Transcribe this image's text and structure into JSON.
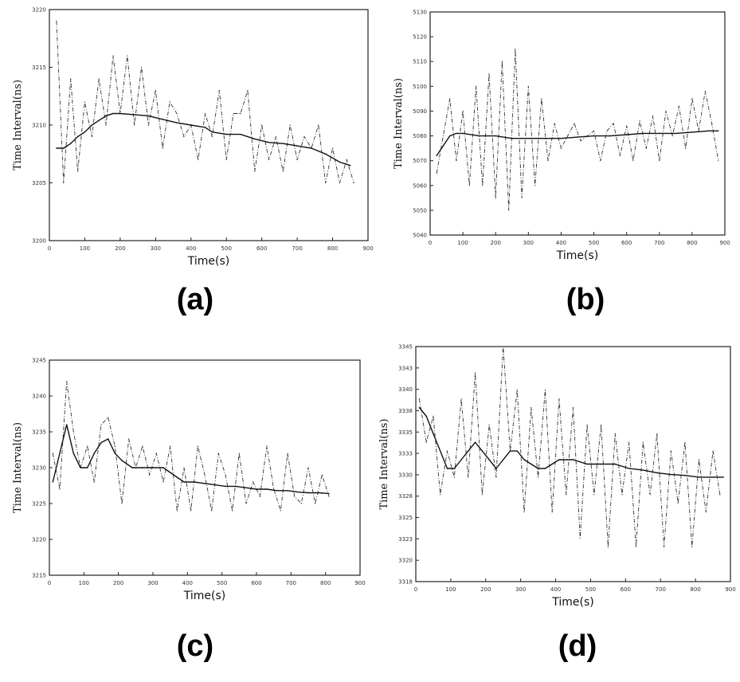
{
  "chart_data": [
    {
      "type": "line",
      "panel_label": "(a)",
      "xlabel": "Time(s)",
      "ylabel": "Time Interval(ns)",
      "xticks": [
        "0",
        "100",
        "200",
        "300",
        "400",
        "500",
        "600",
        "700",
        "800",
        "900"
      ],
      "yticks": [
        "3200",
        "3205",
        "3210",
        "3215",
        "3220"
      ],
      "xlim": [
        0,
        900
      ],
      "ylim": [
        3200,
        3220
      ],
      "series": [
        {
          "style": "dashed-raw",
          "x": [
            20,
            40,
            60,
            80,
            100,
            120,
            140,
            160,
            180,
            200,
            220,
            240,
            260,
            280,
            300,
            320,
            340,
            360,
            380,
            400,
            420,
            440,
            460,
            480,
            500,
            520,
            540,
            560,
            580,
            600,
            620,
            640,
            660,
            680,
            700,
            720,
            740,
            760,
            780,
            800,
            820,
            840,
            860
          ],
          "y": [
            3219,
            3205,
            3214,
            3206,
            3212,
            3209,
            3214,
            3210,
            3216,
            3211,
            3216,
            3210,
            3215,
            3210,
            3213,
            3208,
            3212,
            3211,
            3209,
            3210,
            3207,
            3211,
            3209,
            3213,
            3207,
            3211,
            3211,
            3213,
            3206,
            3210,
            3207,
            3209,
            3206,
            3210,
            3207,
            3209,
            3208,
            3210,
            3205,
            3208,
            3205,
            3207,
            3205
          ]
        },
        {
          "style": "solid-mean",
          "x": [
            20,
            40,
            60,
            80,
            100,
            120,
            140,
            160,
            180,
            200,
            240,
            280,
            320,
            360,
            400,
            440,
            460,
            500,
            540,
            580,
            620,
            660,
            700,
            740,
            780,
            820,
            850
          ],
          "y": [
            3208,
            3208,
            3208.4,
            3209,
            3209.4,
            3210,
            3210.4,
            3210.8,
            3211,
            3211,
            3210.9,
            3210.8,
            3210.5,
            3210.2,
            3210,
            3209.8,
            3209.4,
            3209.2,
            3209.2,
            3208.8,
            3208.5,
            3208.4,
            3208.2,
            3208,
            3207.5,
            3206.8,
            3206.5
          ]
        }
      ]
    },
    {
      "type": "line",
      "panel_label": "(b)",
      "xlabel": "Time(s)",
      "ylabel": "Time Interval(ns)",
      "xticks": [
        "0",
        "100",
        "200",
        "300",
        "400",
        "500",
        "600",
        "700",
        "800",
        "900"
      ],
      "yticks": [
        "5040",
        "5050",
        "5060",
        "5070",
        "5080",
        "5090",
        "5100",
        "5110",
        "5120",
        "5130"
      ],
      "xlim": [
        0,
        900
      ],
      "ylim": [
        5040,
        5130
      ],
      "series": [
        {
          "style": "dashed-raw",
          "x": [
            20,
            40,
            60,
            80,
            100,
            120,
            140,
            160,
            180,
            200,
            220,
            240,
            260,
            280,
            300,
            320,
            340,
            360,
            380,
            400,
            420,
            440,
            460,
            480,
            500,
            520,
            540,
            560,
            580,
            600,
            620,
            640,
            660,
            680,
            700,
            720,
            740,
            760,
            780,
            800,
            820,
            840,
            860,
            880
          ],
          "y": [
            5065,
            5080,
            5095,
            5070,
            5090,
            5060,
            5100,
            5060,
            5105,
            5055,
            5110,
            5050,
            5115,
            5055,
            5100,
            5060,
            5095,
            5070,
            5085,
            5075,
            5080,
            5085,
            5078,
            5080,
            5082,
            5070,
            5082,
            5085,
            5072,
            5084,
            5070,
            5086,
            5075,
            5088,
            5070,
            5090,
            5080,
            5092,
            5075,
            5095,
            5082,
            5098,
            5085,
            5070
          ]
        },
        {
          "style": "solid-mean",
          "x": [
            20,
            40,
            60,
            80,
            100,
            150,
            200,
            250,
            300,
            350,
            400,
            450,
            500,
            550,
            600,
            650,
            700,
            750,
            800,
            850,
            880
          ],
          "y": [
            5072,
            5076,
            5080,
            5081,
            5081,
            5080,
            5080,
            5079,
            5079,
            5079,
            5079,
            5079.5,
            5080,
            5080,
            5080.5,
            5081,
            5081,
            5081,
            5081.5,
            5082,
            5082
          ]
        }
      ]
    },
    {
      "type": "line",
      "panel_label": "(c)",
      "xlabel": "Time(s)",
      "ylabel": "Time Interval(ns)",
      "xticks": [
        "0",
        "100",
        "200",
        "300",
        "400",
        "500",
        "600",
        "700",
        "800",
        "900"
      ],
      "yticks": [
        "3215",
        "3220",
        "3225",
        "3230",
        "3235",
        "3240",
        "3245"
      ],
      "xlim": [
        0,
        900
      ],
      "ylim": [
        3215,
        3245
      ],
      "series": [
        {
          "style": "dashed-raw",
          "x": [
            10,
            30,
            50,
            70,
            90,
            110,
            130,
            150,
            170,
            190,
            210,
            230,
            250,
            270,
            290,
            310,
            330,
            350,
            370,
            390,
            410,
            430,
            450,
            470,
            490,
            510,
            530,
            550,
            570,
            590,
            610,
            630,
            650,
            670,
            690,
            710,
            730,
            750,
            770,
            790,
            810
          ],
          "y": [
            3232,
            3227,
            3242,
            3235,
            3230,
            3233,
            3228,
            3236,
            3237,
            3233,
            3225,
            3234,
            3230,
            3233,
            3229,
            3232,
            3228,
            3233,
            3224,
            3230,
            3224,
            3233,
            3229,
            3224,
            3232,
            3229,
            3224,
            3232,
            3225,
            3228,
            3226,
            3233,
            3227,
            3224,
            3232,
            3226,
            3225,
            3230,
            3225,
            3229,
            3226
          ]
        },
        {
          "style": "solid-mean",
          "x": [
            10,
            30,
            50,
            70,
            90,
            110,
            130,
            150,
            170,
            190,
            210,
            240,
            270,
            300,
            330,
            360,
            390,
            420,
            450,
            480,
            510,
            540,
            570,
            600,
            630,
            660,
            690,
            720,
            750,
            780,
            810
          ],
          "y": [
            3228,
            3232,
            3236,
            3232,
            3230,
            3230,
            3232,
            3233.5,
            3234,
            3232,
            3231,
            3230,
            3230,
            3230,
            3230,
            3229,
            3228,
            3228,
            3227.8,
            3227.6,
            3227.4,
            3227.4,
            3227.2,
            3227,
            3227,
            3226.8,
            3226.8,
            3226.6,
            3226.5,
            3226.5,
            3226.4
          ]
        }
      ]
    },
    {
      "type": "line",
      "panel_label": "(d)",
      "xlabel": "Time(s)",
      "ylabel": "Time Interval(ns)",
      "xticks": [
        "0",
        "100",
        "200",
        "300",
        "400",
        "500",
        "600",
        "700",
        "800",
        "900"
      ],
      "yticks": [
        "3318",
        "3320",
        "3323",
        "3325",
        "3328",
        "3330",
        "3333",
        "3335",
        "3338",
        "3340",
        "3343",
        "3345"
      ],
      "xlim": [
        0,
        900
      ],
      "ylim": [
        3318,
        3345
      ],
      "series": [
        {
          "style": "dashed-raw",
          "x": [
            10,
            30,
            50,
            70,
            90,
            110,
            130,
            150,
            170,
            190,
            210,
            230,
            250,
            270,
            290,
            310,
            330,
            350,
            370,
            390,
            410,
            430,
            450,
            470,
            490,
            510,
            530,
            550,
            570,
            590,
            610,
            630,
            650,
            670,
            690,
            710,
            730,
            750,
            770,
            790,
            810,
            830,
            850,
            870
          ],
          "y": [
            3339,
            3334,
            3337,
            3328,
            3333,
            3330,
            3339,
            3330,
            3342,
            3328,
            3336,
            3330,
            3345,
            3333,
            3340,
            3326,
            3338,
            3330,
            3340,
            3326,
            3339,
            3328,
            3338,
            3323,
            3336,
            3328,
            3336,
            3322,
            3335,
            3328,
            3334,
            3322,
            3334,
            3328,
            3335,
            3322,
            3333,
            3327,
            3334,
            3322,
            3332,
            3326,
            3333,
            3328
          ]
        },
        {
          "style": "solid-mean",
          "x": [
            10,
            30,
            50,
            70,
            90,
            110,
            130,
            150,
            170,
            190,
            210,
            230,
            250,
            270,
            290,
            310,
            330,
            350,
            370,
            390,
            410,
            450,
            490,
            530,
            570,
            610,
            650,
            690,
            730,
            770,
            810,
            850,
            880
          ],
          "y": [
            3338,
            3337,
            3335,
            3333,
            3331,
            3331,
            3332,
            3333,
            3334,
            3333,
            3332,
            3331,
            3332,
            3333,
            3333,
            3332,
            3331.5,
            3331,
            3331,
            3331.5,
            3332,
            3332,
            3331.5,
            3331.5,
            3331.5,
            3331,
            3330.8,
            3330.5,
            3330.3,
            3330.2,
            3330,
            3330,
            3330
          ]
        }
      ]
    }
  ],
  "colors": {
    "ink": "#111111",
    "raw": "#333333",
    "frame": "#222222"
  }
}
